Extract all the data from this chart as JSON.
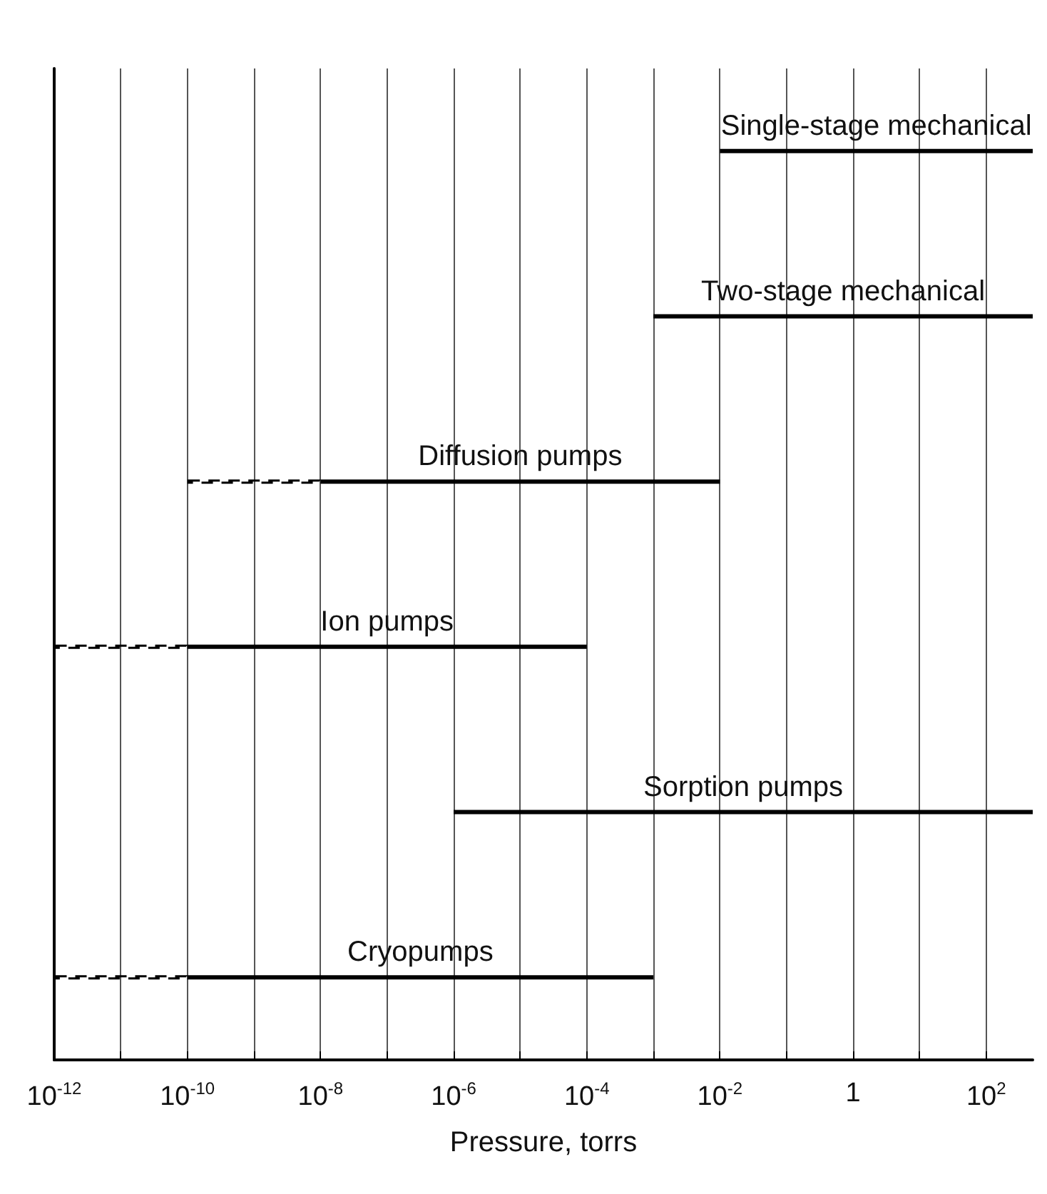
{
  "chart_data": {
    "type": "bar",
    "orientation": "horizontal",
    "log": "x",
    "categories": [
      "Single-stage mechanical",
      "Two-stage mechanical",
      "Diffusion pumps",
      "Ion pumps",
      "Sorption pumps",
      "Cryopumps"
    ],
    "series": [
      {
        "color": "#000000",
        "line_style": "solid",
        "base": [
          0.01,
          0.001,
          1e-08,
          1e-10,
          1e-06,
          1e-10
        ],
        "values": [
          499.99,
          499.999,
          0.00999999,
          9.99999e-05,
          499.999999,
          0.0009999999
        ]
      },
      {
        "color": "#000000",
        "line_style": "dashed",
        "base": [
          null,
          null,
          1e-10,
          1e-12,
          null,
          1e-12
        ],
        "values": [
          null,
          null,
          9.9e-09,
          9.9e-11,
          null,
          9.9e-11
        ]
      }
    ],
    "xlim": [
      1e-12,
      500
    ],
    "xticks": [
      {
        "value": 1e-12,
        "label": "10$^{-12}$"
      },
      {
        "value": 1e-11,
        "label": null
      },
      {
        "value": 1e-10,
        "label": "10$^{-10}$"
      },
      {
        "value": 1e-09,
        "label": null
      },
      {
        "value": 1e-08,
        "label": "10$^{-8}$"
      },
      {
        "value": 1e-07,
        "label": null
      },
      {
        "value": 1e-06,
        "label": "10$^{-6}$"
      },
      {
        "value": 1e-05,
        "label": null
      },
      {
        "value": 0.0001,
        "label": "10$^{-4}$"
      },
      {
        "value": 0.001,
        "label": null
      },
      {
        "value": 0.01,
        "label": "10$^{-2}$"
      },
      {
        "value": 0.1,
        "label": null
      },
      1,
      {
        "value": 10,
        "label": null
      },
      {
        "value": 100,
        "label": "10$^{2}$"
      }
    ],
    "xlabel": "Pressure, torrs",
    "grid": "x"
  }
}
